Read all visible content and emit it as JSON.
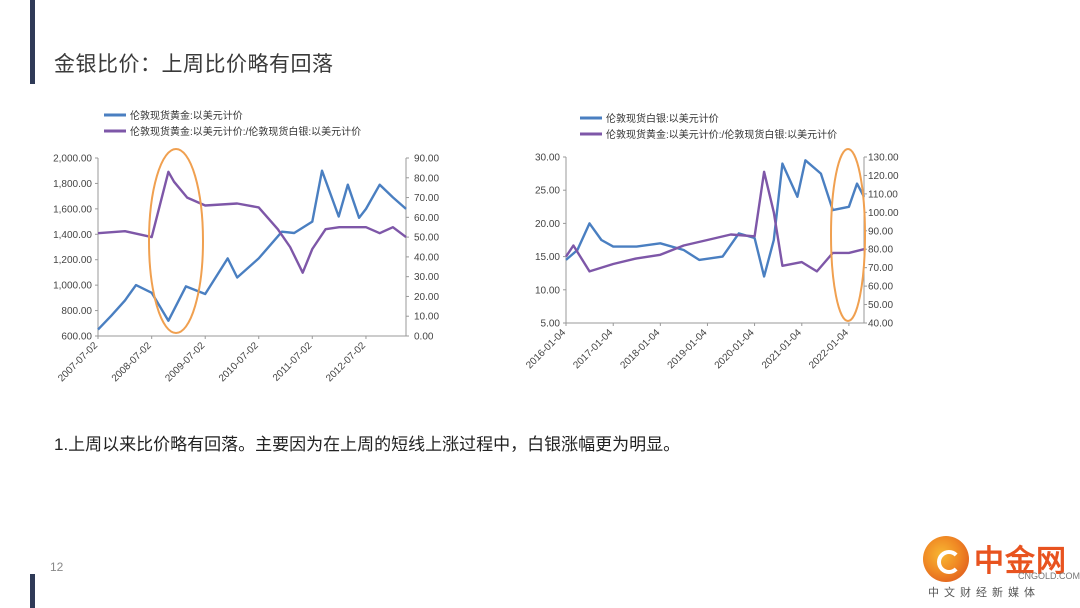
{
  "slide": {
    "title": "金银比价：上周比价略有回落",
    "bullet": "1.上周以来比价略有回落。主要因为在上周的短线上涨过程中，白银涨幅更为明显。",
    "page_number": "12"
  },
  "logo": {
    "name": "中金网",
    "domain": "CNGOLD.COM.CN",
    "tagline": "中文财经新媒体"
  },
  "colors": {
    "gold_series": "#4a7fc1",
    "ratio_series": "#7e57a8",
    "highlight": "#f0a050",
    "accent": "#2f3a57"
  },
  "chart_data": [
    {
      "type": "line",
      "title": "",
      "legend_position": "top",
      "grid": false,
      "x": [
        "2007-07-02",
        "2008-07-02",
        "2009-07-02",
        "2010-07-02",
        "2011-07-02",
        "2012-07-02"
      ],
      "xlim": [
        "2007-07-02",
        "2013-04-01"
      ],
      "y_left": {
        "ticks": [
          "600.00",
          "800.00",
          "1,000.00",
          "1,200.00",
          "1,400.00",
          "1,600.00",
          "1,800.00",
          "2,000.00"
        ],
        "ylim": [
          600,
          2000
        ]
      },
      "y_right": {
        "ticks": [
          "0.00",
          "10.00",
          "20.00",
          "30.00",
          "40.00",
          "50.00",
          "60.00",
          "70.00",
          "80.00",
          "90.00"
        ],
        "ylim": [
          0,
          90
        ]
      },
      "series": [
        {
          "name": "伦敦现货黄金:以美元计价",
          "axis": "left",
          "points": [
            [
              "2007-07-02",
              650
            ],
            [
              "2007-10-01",
              760
            ],
            [
              "2008-01-02",
              880
            ],
            [
              "2008-03-17",
              1000
            ],
            [
              "2008-07-02",
              940
            ],
            [
              "2008-10-24",
              720
            ],
            [
              "2009-02-20",
              990
            ],
            [
              "2009-07-02",
              930
            ],
            [
              "2009-12-02",
              1210
            ],
            [
              "2010-02-05",
              1060
            ],
            [
              "2010-07-02",
              1210
            ],
            [
              "2010-12-07",
              1420
            ],
            [
              "2011-03-01",
              1410
            ],
            [
              "2011-07-02",
              1500
            ],
            [
              "2011-09-06",
              1900
            ],
            [
              "2011-12-29",
              1540
            ],
            [
              "2012-02-29",
              1790
            ],
            [
              "2012-05-16",
              1530
            ],
            [
              "2012-07-02",
              1600
            ],
            [
              "2012-10-04",
              1790
            ],
            [
              "2013-01-02",
              1690
            ],
            [
              "2013-04-01",
              1600
            ]
          ]
        },
        {
          "name": "伦敦现货黄金:以美元计价:/伦敦现货白银:以美元计价",
          "axis": "right",
          "points": [
            [
              "2007-07-02",
              52
            ],
            [
              "2008-01-02",
              53
            ],
            [
              "2008-07-02",
              50
            ],
            [
              "2008-10-24",
              83
            ],
            [
              "2008-12-01",
              78
            ],
            [
              "2009-03-01",
              70
            ],
            [
              "2009-07-02",
              66
            ],
            [
              "2010-02-05",
              67
            ],
            [
              "2010-07-02",
              65
            ],
            [
              "2010-11-09",
              54
            ],
            [
              "2011-02-01",
              45
            ],
            [
              "2011-04-28",
              32
            ],
            [
              "2011-07-02",
              44
            ],
            [
              "2011-10-01",
              54
            ],
            [
              "2012-01-02",
              55
            ],
            [
              "2012-07-02",
              55
            ],
            [
              "2012-10-04",
              52
            ],
            [
              "2013-01-02",
              55
            ],
            [
              "2013-04-01",
              50
            ]
          ]
        }
      ]
    },
    {
      "type": "line",
      "title": "",
      "legend_position": "top",
      "grid": false,
      "x": [
        "2016-01-04",
        "2017-01-04",
        "2018-01-04",
        "2019-01-04",
        "2020-01-04",
        "2021-01-04",
        "2022-01-04"
      ],
      "xlim": [
        "2016-01-04",
        "2022-05-01"
      ],
      "y_left": {
        "ticks": [
          "5.00",
          "10.00",
          "15.00",
          "20.00",
          "25.00",
          "30.00"
        ],
        "ylim": [
          5,
          30
        ]
      },
      "y_right": {
        "ticks": [
          "40.00",
          "50.00",
          "60.00",
          "70.00",
          "80.00",
          "90.00",
          "100.00",
          "110.00",
          "120.00",
          "130.00"
        ],
        "ylim": [
          40,
          130
        ]
      },
      "series": [
        {
          "name": "伦敦现货白银:以美元计价",
          "axis": "left",
          "points": [
            [
              "2016-01-04",
              14.5
            ],
            [
              "2016-04-01",
              16
            ],
            [
              "2016-07-04",
              20
            ],
            [
              "2016-10-04",
              17.5
            ],
            [
              "2017-01-04",
              16.5
            ],
            [
              "2017-07-04",
              16.5
            ],
            [
              "2018-01-04",
              17
            ],
            [
              "2018-07-04",
              16
            ],
            [
              "2018-11-01",
              14.5
            ],
            [
              "2019-05-01",
              15
            ],
            [
              "2019-09-04",
              18.5
            ],
            [
              "2020-01-04",
              17.8
            ],
            [
              "2020-03-18",
              12
            ],
            [
              "2020-06-01",
              17.5
            ],
            [
              "2020-08-07",
              29
            ],
            [
              "2020-12-01",
              24
            ],
            [
              "2021-02-01",
              29.5
            ],
            [
              "2021-06-01",
              27.5
            ],
            [
              "2021-09-01",
              22
            ],
            [
              "2022-01-04",
              22.5
            ],
            [
              "2022-03-08",
              26
            ],
            [
              "2022-05-01",
              24
            ]
          ]
        },
        {
          "name": "伦敦现货黄金:以美元计价:/伦敦现货白银:以美元计价",
          "axis": "right",
          "points": [
            [
              "2016-01-04",
              76
            ],
            [
              "2016-03-01",
              82
            ],
            [
              "2016-07-04",
              68
            ],
            [
              "2017-01-04",
              72
            ],
            [
              "2017-07-04",
              75
            ],
            [
              "2018-01-04",
              77
            ],
            [
              "2018-07-04",
              82
            ],
            [
              "2019-01-04",
              85
            ],
            [
              "2019-07-04",
              88
            ],
            [
              "2020-01-04",
              87
            ],
            [
              "2020-03-18",
              122
            ],
            [
              "2020-06-01",
              100
            ],
            [
              "2020-08-07",
              71
            ],
            [
              "2021-01-04",
              73
            ],
            [
              "2021-05-01",
              68
            ],
            [
              "2021-09-01",
              78
            ],
            [
              "2022-01-04",
              78
            ],
            [
              "2022-05-01",
              80
            ]
          ]
        }
      ]
    }
  ]
}
